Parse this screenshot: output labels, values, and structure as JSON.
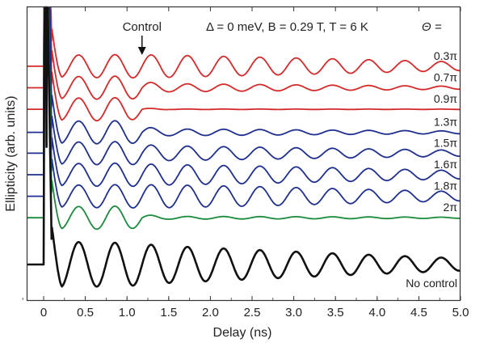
{
  "chart_data": {
    "type": "line",
    "xlabel": "Delay (ns)",
    "ylabel": "Ellipticity (arb. units)",
    "title": "Δ = 0 meV, B = 0.29 T, T = 6 K",
    "legend_header": "Θ =",
    "xlim": [
      -0.25,
      5.0
    ],
    "xticks": [
      "0",
      "0.5",
      "1.0",
      "1.5",
      "2.0",
      "2.5",
      "3.0",
      "3.5",
      "4.0",
      "4.5",
      "5.0"
    ],
    "xtick_values": [
      0,
      0.5,
      1.0,
      1.5,
      2.0,
      2.5,
      3.0,
      3.5,
      4.0,
      4.5,
      5.0
    ],
    "annotation": {
      "text": "Control",
      "x": 1.18
    },
    "oscillation_period_ns": 0.435,
    "series": [
      {
        "name": "0.3π",
        "color": "#d42a2a",
        "baseline": 4.45,
        "amplitude_ratio": 1.0,
        "x": [
          0.2,
          1.0,
          1.5,
          2.5,
          3.5,
          5.0
        ],
        "amplitude": [
          0.36,
          0.38,
          0.36,
          0.3,
          0.24,
          0.14
        ]
      },
      {
        "name": "0.7π",
        "color": "#d42a2a",
        "baseline": 3.75,
        "amplitude_ratio": 0.6,
        "x": [
          0.2,
          1.0,
          1.5,
          2.5,
          3.5,
          5.0
        ],
        "amplitude": [
          0.36,
          0.38,
          0.22,
          0.18,
          0.14,
          0.08
        ]
      },
      {
        "name": "0.9π",
        "color": "#d42a2a",
        "baseline": 3.05,
        "amplitude_ratio": 0.15,
        "x": [
          0.2,
          1.0,
          1.5,
          2.5,
          3.5,
          5.0
        ],
        "amplitude": [
          0.36,
          0.38,
          0.06,
          0.05,
          0.04,
          0.03
        ]
      },
      {
        "name": "1.3π",
        "color": "#1e2f8f",
        "baseline": 2.3,
        "amplitude_ratio": 0.55,
        "x": [
          0.2,
          1.0,
          1.5,
          2.5,
          3.5,
          5.0
        ],
        "amplitude": [
          0.36,
          0.38,
          0.2,
          0.17,
          0.13,
          0.08
        ]
      },
      {
        "name": "1.5π",
        "color": "#1e2f8f",
        "baseline": 1.62,
        "amplitude_ratio": 0.8,
        "x": [
          0.2,
          1.0,
          1.5,
          2.5,
          3.5,
          5.0
        ],
        "amplitude": [
          0.36,
          0.38,
          0.3,
          0.25,
          0.2,
          0.12
        ]
      },
      {
        "name": "1.6π",
        "color": "#1e2f8f",
        "baseline": 0.92,
        "amplitude_ratio": 0.95,
        "x": [
          0.2,
          1.0,
          1.5,
          2.5,
          3.5,
          5.0
        ],
        "amplitude": [
          0.36,
          0.38,
          0.35,
          0.3,
          0.24,
          0.14
        ]
      },
      {
        "name": "1.8π",
        "color": "#1e2f8f",
        "baseline": 0.22,
        "amplitude_ratio": 1.0,
        "x": [
          0.2,
          1.0,
          1.5,
          2.5,
          3.5,
          5.0
        ],
        "amplitude": [
          0.36,
          0.38,
          0.37,
          0.32,
          0.25,
          0.15
        ]
      },
      {
        "name": "2π",
        "color": "#1a8a3c",
        "baseline": -0.48,
        "amplitude_ratio": 0.35,
        "x": [
          0.2,
          1.0,
          1.5,
          2.5,
          3.5,
          5.0
        ],
        "amplitude": [
          0.36,
          0.38,
          0.13,
          0.11,
          0.09,
          0.05
        ]
      },
      {
        "name": "No control",
        "color": "#111111",
        "baseline": -2.0,
        "amplitude_ratio": 1.0,
        "x": [
          0.2,
          1.0,
          1.5,
          2.5,
          3.5,
          5.0
        ],
        "amplitude": [
          0.74,
          0.7,
          0.6,
          0.48,
          0.36,
          0.2
        ]
      }
    ]
  }
}
